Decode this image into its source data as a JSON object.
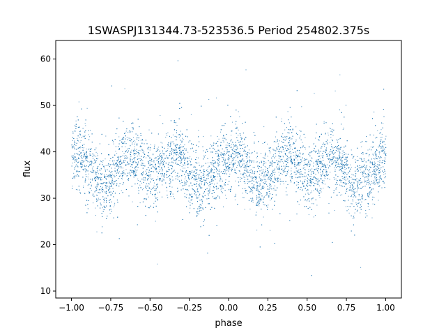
{
  "chart_data": {
    "type": "scatter",
    "title": "1SWASPJ131344.73-523536.5 Period 254802.375s",
    "xlabel": "phase",
    "ylabel": "flux",
    "xlim": [
      -1.1,
      1.1
    ],
    "ylim": [
      8.5,
      64
    ],
    "xticks": [
      -1.0,
      -0.75,
      -0.5,
      -0.25,
      0.0,
      0.25,
      0.5,
      0.75,
      1.0
    ],
    "xtick_labels": [
      "−1.00",
      "−0.75",
      "−0.50",
      "−0.25",
      "0.00",
      "0.25",
      "0.50",
      "0.75",
      "1.00"
    ],
    "yticks": [
      10,
      20,
      30,
      40,
      50,
      60
    ],
    "ytick_labels": [
      "10",
      "20",
      "30",
      "40",
      "50",
      "60"
    ],
    "grid": false,
    "legend": "none",
    "point_color": "#1f77b4",
    "phase_range": [
      -1.0,
      1.0
    ],
    "profile": {
      "phase": [
        0.0,
        0.05,
        0.1,
        0.15,
        0.2,
        0.25,
        0.3,
        0.35,
        0.4,
        0.45,
        0.5,
        0.55,
        0.6,
        0.65,
        0.7,
        0.75,
        0.8,
        0.85,
        0.9,
        0.95,
        1.0
      ],
      "median_flux": [
        39,
        39.5,
        37,
        34,
        32.5,
        34,
        37.5,
        39.5,
        39,
        37,
        35,
        35.5,
        37.5,
        39,
        38,
        35,
        33,
        33.5,
        35,
        37.5,
        39
      ],
      "spread": [
        3.5,
        3.5,
        3.5,
        3.5,
        3.5,
        3.5,
        3.5,
        3.5,
        3.5,
        3.5,
        3.5,
        3.5,
        3.5,
        3.5,
        3.5,
        3.5,
        3.5,
        3.5,
        3.5,
        3.5,
        3.5
      ]
    }
  }
}
